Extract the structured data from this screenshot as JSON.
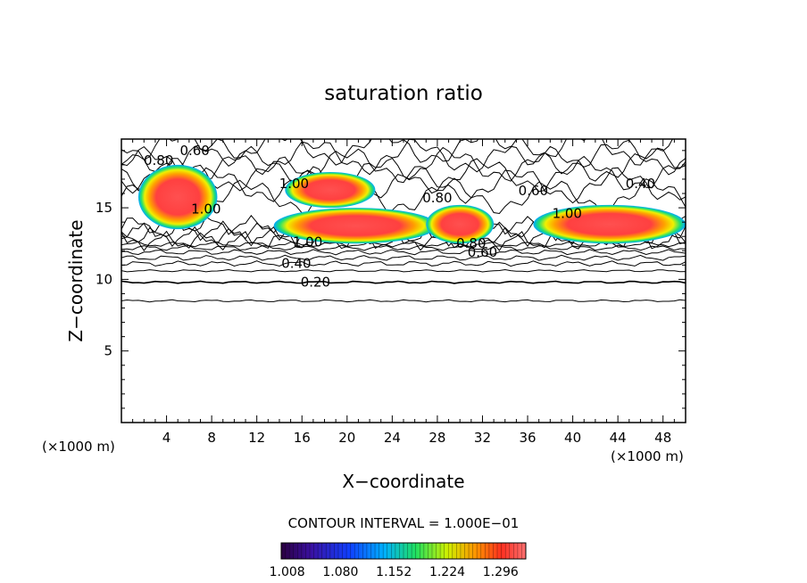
{
  "chart_data": {
    "type": "heatmap",
    "title": "saturation ratio",
    "xlabel": "X−coordinate",
    "ylabel": "Z−coordinate",
    "x_unit_left": "(×1000 m)",
    "x_unit_right": "(×1000 m)",
    "xlim": [
      0,
      50
    ],
    "ylim": [
      0,
      19.8
    ],
    "x_ticks": [
      4,
      8,
      12,
      16,
      20,
      24,
      28,
      32,
      36,
      40,
      44,
      48
    ],
    "y_ticks": [
      5,
      10,
      15
    ],
    "contour_interval_text": "CONTOUR INTERVAL = 1.000E−01",
    "colorbar_min": 1.0,
    "colorbar_max": 1.33,
    "colorbar_ticks": [
      "1.008",
      "1.080",
      "1.152",
      "1.224",
      "1.296"
    ],
    "colorbar_tick_values": [
      1.008,
      1.08,
      1.152,
      1.224,
      1.296
    ],
    "contour_labels": [
      {
        "text": "0.60",
        "x": 6.5,
        "y": 19.0
      },
      {
        "text": "0.80",
        "x": 3.3,
        "y": 18.3
      },
      {
        "text": "1.00",
        "x": 15.3,
        "y": 16.7
      },
      {
        "text": "1.00",
        "x": 7.5,
        "y": 14.9
      },
      {
        "text": "0.80",
        "x": 28.0,
        "y": 15.7
      },
      {
        "text": "0.60",
        "x": 36.5,
        "y": 16.2
      },
      {
        "text": "0.40",
        "x": 46.0,
        "y": 16.7
      },
      {
        "text": "1.00",
        "x": 39.5,
        "y": 14.6
      },
      {
        "text": "1.00",
        "x": 16.5,
        "y": 12.6
      },
      {
        "text": "0.80",
        "x": 31.0,
        "y": 12.5
      },
      {
        "text": "0.60",
        "x": 32.0,
        "y": 11.9
      },
      {
        "text": "0.40",
        "x": 15.5,
        "y": 11.1
      },
      {
        "text": "0.20",
        "x": 17.2,
        "y": 9.8
      }
    ],
    "supersaturated_regions": [
      {
        "x": [
          1.5,
          8.5
        ],
        "z": [
          13.5,
          18.0
        ],
        "max": 1.33
      },
      {
        "x": [
          14.5,
          22.5
        ],
        "z": [
          15.0,
          17.5
        ],
        "max": 1.3
      },
      {
        "x": [
          13.5,
          28.0
        ],
        "z": [
          12.5,
          15.0
        ],
        "max": 1.33
      },
      {
        "x": [
          27.0,
          33.0
        ],
        "z": [
          12.5,
          15.2
        ],
        "max": 1.3
      },
      {
        "x": [
          36.5,
          50.0
        ],
        "z": [
          12.5,
          15.2
        ],
        "max": 1.33
      }
    ]
  }
}
